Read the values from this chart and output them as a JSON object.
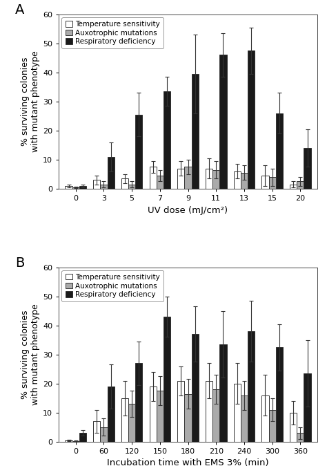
{
  "panel_A": {
    "categories": [
      0,
      3,
      5,
      7,
      9,
      11,
      13,
      15,
      20
    ],
    "xlabel": "UV dose (mJ/cm²)",
    "temp_sens": [
      1.0,
      3.0,
      3.5,
      7.5,
      7.0,
      7.0,
      6.0,
      4.5,
      1.5
    ],
    "temp_sens_err": [
      0.5,
      1.5,
      1.5,
      2.0,
      2.5,
      3.5,
      2.5,
      3.5,
      1.0
    ],
    "auxo_mut": [
      0.5,
      1.5,
      1.5,
      4.5,
      7.5,
      6.5,
      5.5,
      4.0,
      2.5
    ],
    "auxo_mut_err": [
      0.3,
      1.0,
      1.0,
      2.0,
      2.5,
      3.0,
      2.5,
      3.0,
      1.5
    ],
    "resp_def": [
      1.0,
      11.0,
      25.5,
      33.5,
      39.5,
      46.0,
      47.5,
      26.0,
      14.0
    ],
    "resp_def_err": [
      0.5,
      5.0,
      7.5,
      5.0,
      13.5,
      7.5,
      8.0,
      7.0,
      6.5
    ]
  },
  "panel_B": {
    "categories": [
      0,
      60,
      120,
      150,
      180,
      210,
      240,
      300,
      360
    ],
    "xlabel": "Incubation time with EMS 3% (min)",
    "temp_sens": [
      0.5,
      7.0,
      15.0,
      19.0,
      21.0,
      21.0,
      20.0,
      16.0,
      10.0
    ],
    "temp_sens_err": [
      0.2,
      4.0,
      6.0,
      5.0,
      5.0,
      6.0,
      7.0,
      7.0,
      4.0
    ],
    "auxo_mut": [
      0.2,
      5.0,
      13.0,
      17.5,
      16.5,
      18.0,
      16.0,
      11.0,
      3.0
    ],
    "auxo_mut_err": [
      0.2,
      3.0,
      4.5,
      5.0,
      5.0,
      5.0,
      5.0,
      4.0,
      2.0
    ],
    "resp_def": [
      3.0,
      19.0,
      27.0,
      43.0,
      37.0,
      33.5,
      38.0,
      32.5,
      23.5
    ],
    "resp_def_err": [
      1.0,
      7.5,
      7.5,
      7.0,
      9.5,
      11.5,
      10.5,
      8.0,
      11.5
    ]
  },
  "ylabel": "% surviving colonies\nwith mutant phenotype",
  "ylim": [
    0,
    60
  ],
  "yticks": [
    0,
    10,
    20,
    30,
    40,
    50,
    60
  ],
  "color_temp": "#ffffff",
  "color_auxo": "#aaaaaa",
  "color_resp": "#1a1a1a",
  "bar_edgecolor": "#333333",
  "legend_labels": [
    "Temperature sensitivity",
    "Auxotrophic mutations",
    "Respiratory deficiency"
  ],
  "panel_label_A": "A",
  "panel_label_B": "B",
  "bar_width": 0.25,
  "axis_fontsize": 9,
  "tick_fontsize": 8,
  "legend_fontsize": 7.5,
  "panel_label_fontsize": 14
}
